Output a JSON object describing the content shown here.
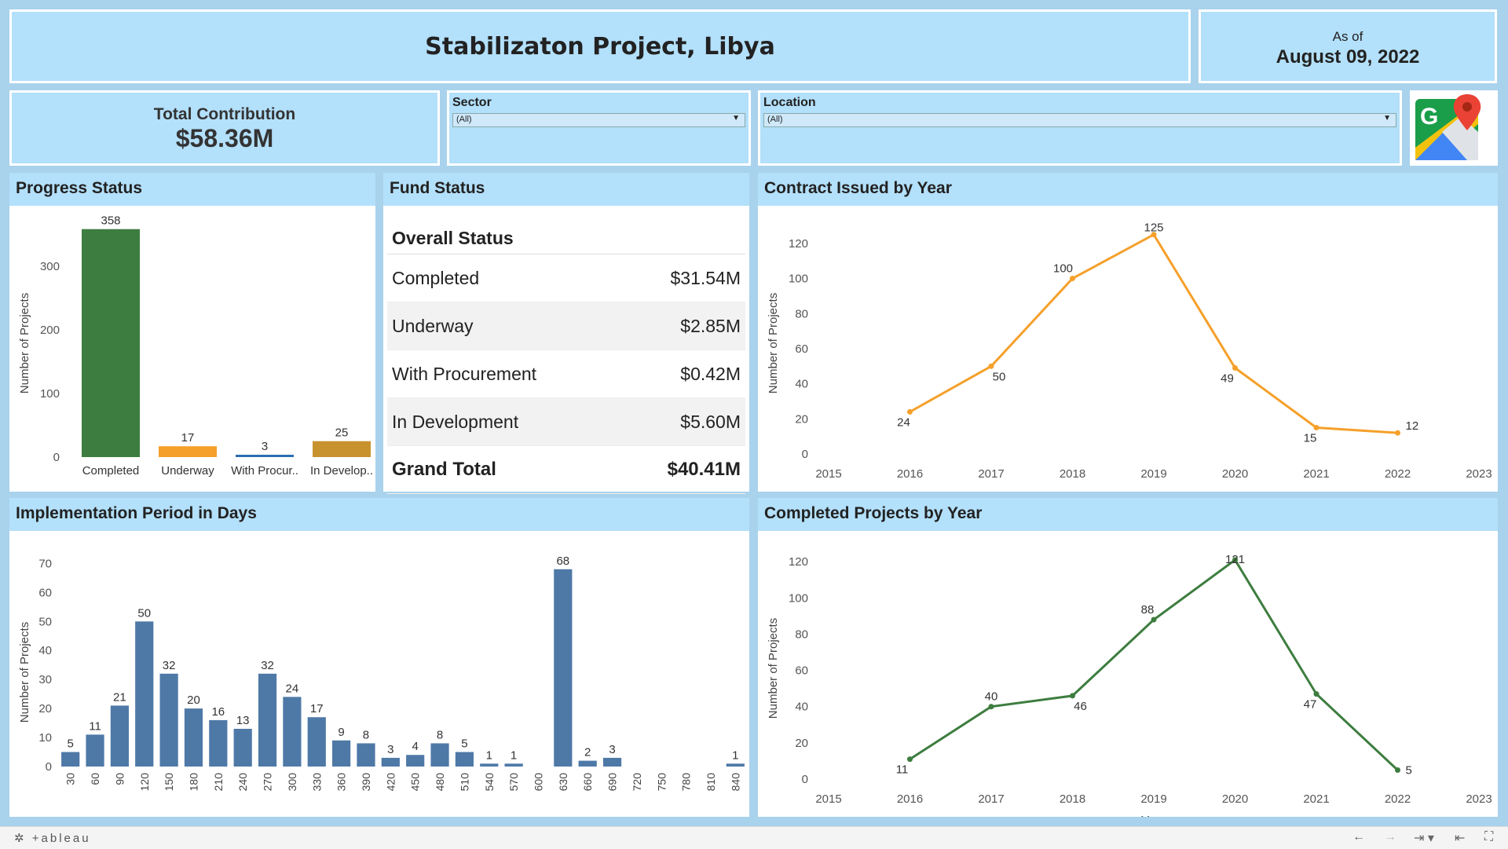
{
  "header": {
    "title": "Stabilizaton Project, Libya",
    "as_of_label": "As of",
    "as_of_date": "August 09, 2022"
  },
  "contribution": {
    "label": "Total Contribution",
    "value": "$58.36M"
  },
  "filters": {
    "sector": {
      "label": "Sector",
      "value": "(All)"
    },
    "location": {
      "label": "Location",
      "value": "(All)"
    }
  },
  "maps_icon": "google-maps-icon",
  "progress": {
    "title": "Progress Status",
    "chart_data": {
      "type": "bar",
      "categories": [
        "Completed",
        "Underway",
        "With Procur..",
        "In Develop.."
      ],
      "values": [
        358,
        17,
        3,
        25
      ],
      "colors": [
        "#3d7d3f",
        "#f5a02a",
        "#2a6fb0",
        "#c8922f"
      ],
      "ylabel": "Number of Projects",
      "yticks": [
        0,
        100,
        200,
        300
      ],
      "ylim": [
        0,
        370
      ]
    }
  },
  "fund": {
    "title": "Fund Status",
    "header": "Overall Status",
    "rows": [
      {
        "label": "Completed",
        "value": "$31.54M"
      },
      {
        "label": "Underway",
        "value": "$2.85M"
      },
      {
        "label": "With Procurement",
        "value": "$0.42M"
      },
      {
        "label": "In Development",
        "value": "$5.60M"
      }
    ],
    "total": {
      "label": "Grand Total",
      "value": "$40.41M"
    }
  },
  "contract": {
    "title": "Contract Issued by Year",
    "chart_data": {
      "type": "line",
      "x": [
        2016,
        2017,
        2018,
        2019,
        2020,
        2021,
        2022
      ],
      "values": [
        24,
        50,
        100,
        125,
        49,
        15,
        12
      ],
      "color": "#f5a02a",
      "ylabel": "Number of Projects",
      "xticks": [
        2015,
        2016,
        2017,
        2018,
        2019,
        2020,
        2021,
        2022,
        2023
      ],
      "yticks": [
        0,
        20,
        40,
        60,
        80,
        100,
        120
      ],
      "xlim": [
        2015,
        2023
      ],
      "ylim": [
        0,
        128
      ]
    }
  },
  "implementation": {
    "title": "Implementation Period in Days",
    "chart_data": {
      "type": "bar",
      "categories": [
        "30",
        "60",
        "90",
        "120",
        "150",
        "180",
        "210",
        "240",
        "270",
        "300",
        "330",
        "360",
        "390",
        "420",
        "450",
        "480",
        "510",
        "540",
        "570",
        "600",
        "630",
        "660",
        "690",
        "720",
        "750",
        "780",
        "810",
        "840"
      ],
      "values": [
        5,
        11,
        21,
        50,
        32,
        20,
        16,
        13,
        32,
        24,
        17,
        9,
        8,
        3,
        4,
        8,
        5,
        1,
        1,
        null,
        68,
        2,
        3,
        null,
        null,
        null,
        null,
        1
      ],
      "color": "#4e79a7",
      "ylabel": "Number of Projects",
      "yticks": [
        0,
        10,
        20,
        30,
        40,
        50,
        60,
        70
      ],
      "ylim": [
        0,
        72
      ]
    }
  },
  "completed": {
    "title": "Completed Projects by Year",
    "chart_data": {
      "type": "line",
      "x": [
        2016,
        2017,
        2018,
        2019,
        2020,
        2021,
        2022
      ],
      "values": [
        11,
        40,
        46,
        88,
        121,
        47,
        5
      ],
      "color": "#3d7d3f",
      "ylabel": "Number of Projects",
      "xlabel": "Year",
      "xticks": [
        2015,
        2016,
        2017,
        2018,
        2019,
        2020,
        2021,
        2022,
        2023
      ],
      "yticks": [
        0,
        20,
        40,
        60,
        80,
        100,
        120
      ],
      "xlim": [
        2015,
        2023
      ],
      "ylim": [
        0,
        124
      ]
    }
  },
  "footer": {
    "logo": "+ableau"
  }
}
